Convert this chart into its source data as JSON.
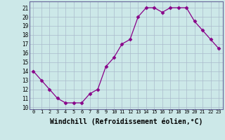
{
  "x": [
    0,
    1,
    2,
    3,
    4,
    5,
    6,
    7,
    8,
    9,
    10,
    11,
    12,
    13,
    14,
    15,
    16,
    17,
    18,
    19,
    20,
    21,
    22,
    23
  ],
  "y": [
    14,
    13,
    12,
    11,
    10.5,
    10.5,
    10.5,
    11.5,
    12,
    14.5,
    15.5,
    17,
    17.5,
    20,
    21,
    21,
    20.5,
    21,
    21,
    21,
    19.5,
    18.5,
    17.5,
    16.5
  ],
  "line_color": "#880088",
  "marker": "D",
  "marker_size": 2.5,
  "bg_color": "#cce8e8",
  "grid_color": "#aabbcc",
  "xlabel": "Windchill (Refroidissement éolien,°C)",
  "xlabel_fontsize": 7,
  "ylabel_ticks": [
    10,
    11,
    12,
    13,
    14,
    15,
    16,
    17,
    18,
    19,
    20,
    21
  ],
  "xlim": [
    -0.5,
    23.5
  ],
  "ylim": [
    9.8,
    21.7
  ],
  "title": ""
}
